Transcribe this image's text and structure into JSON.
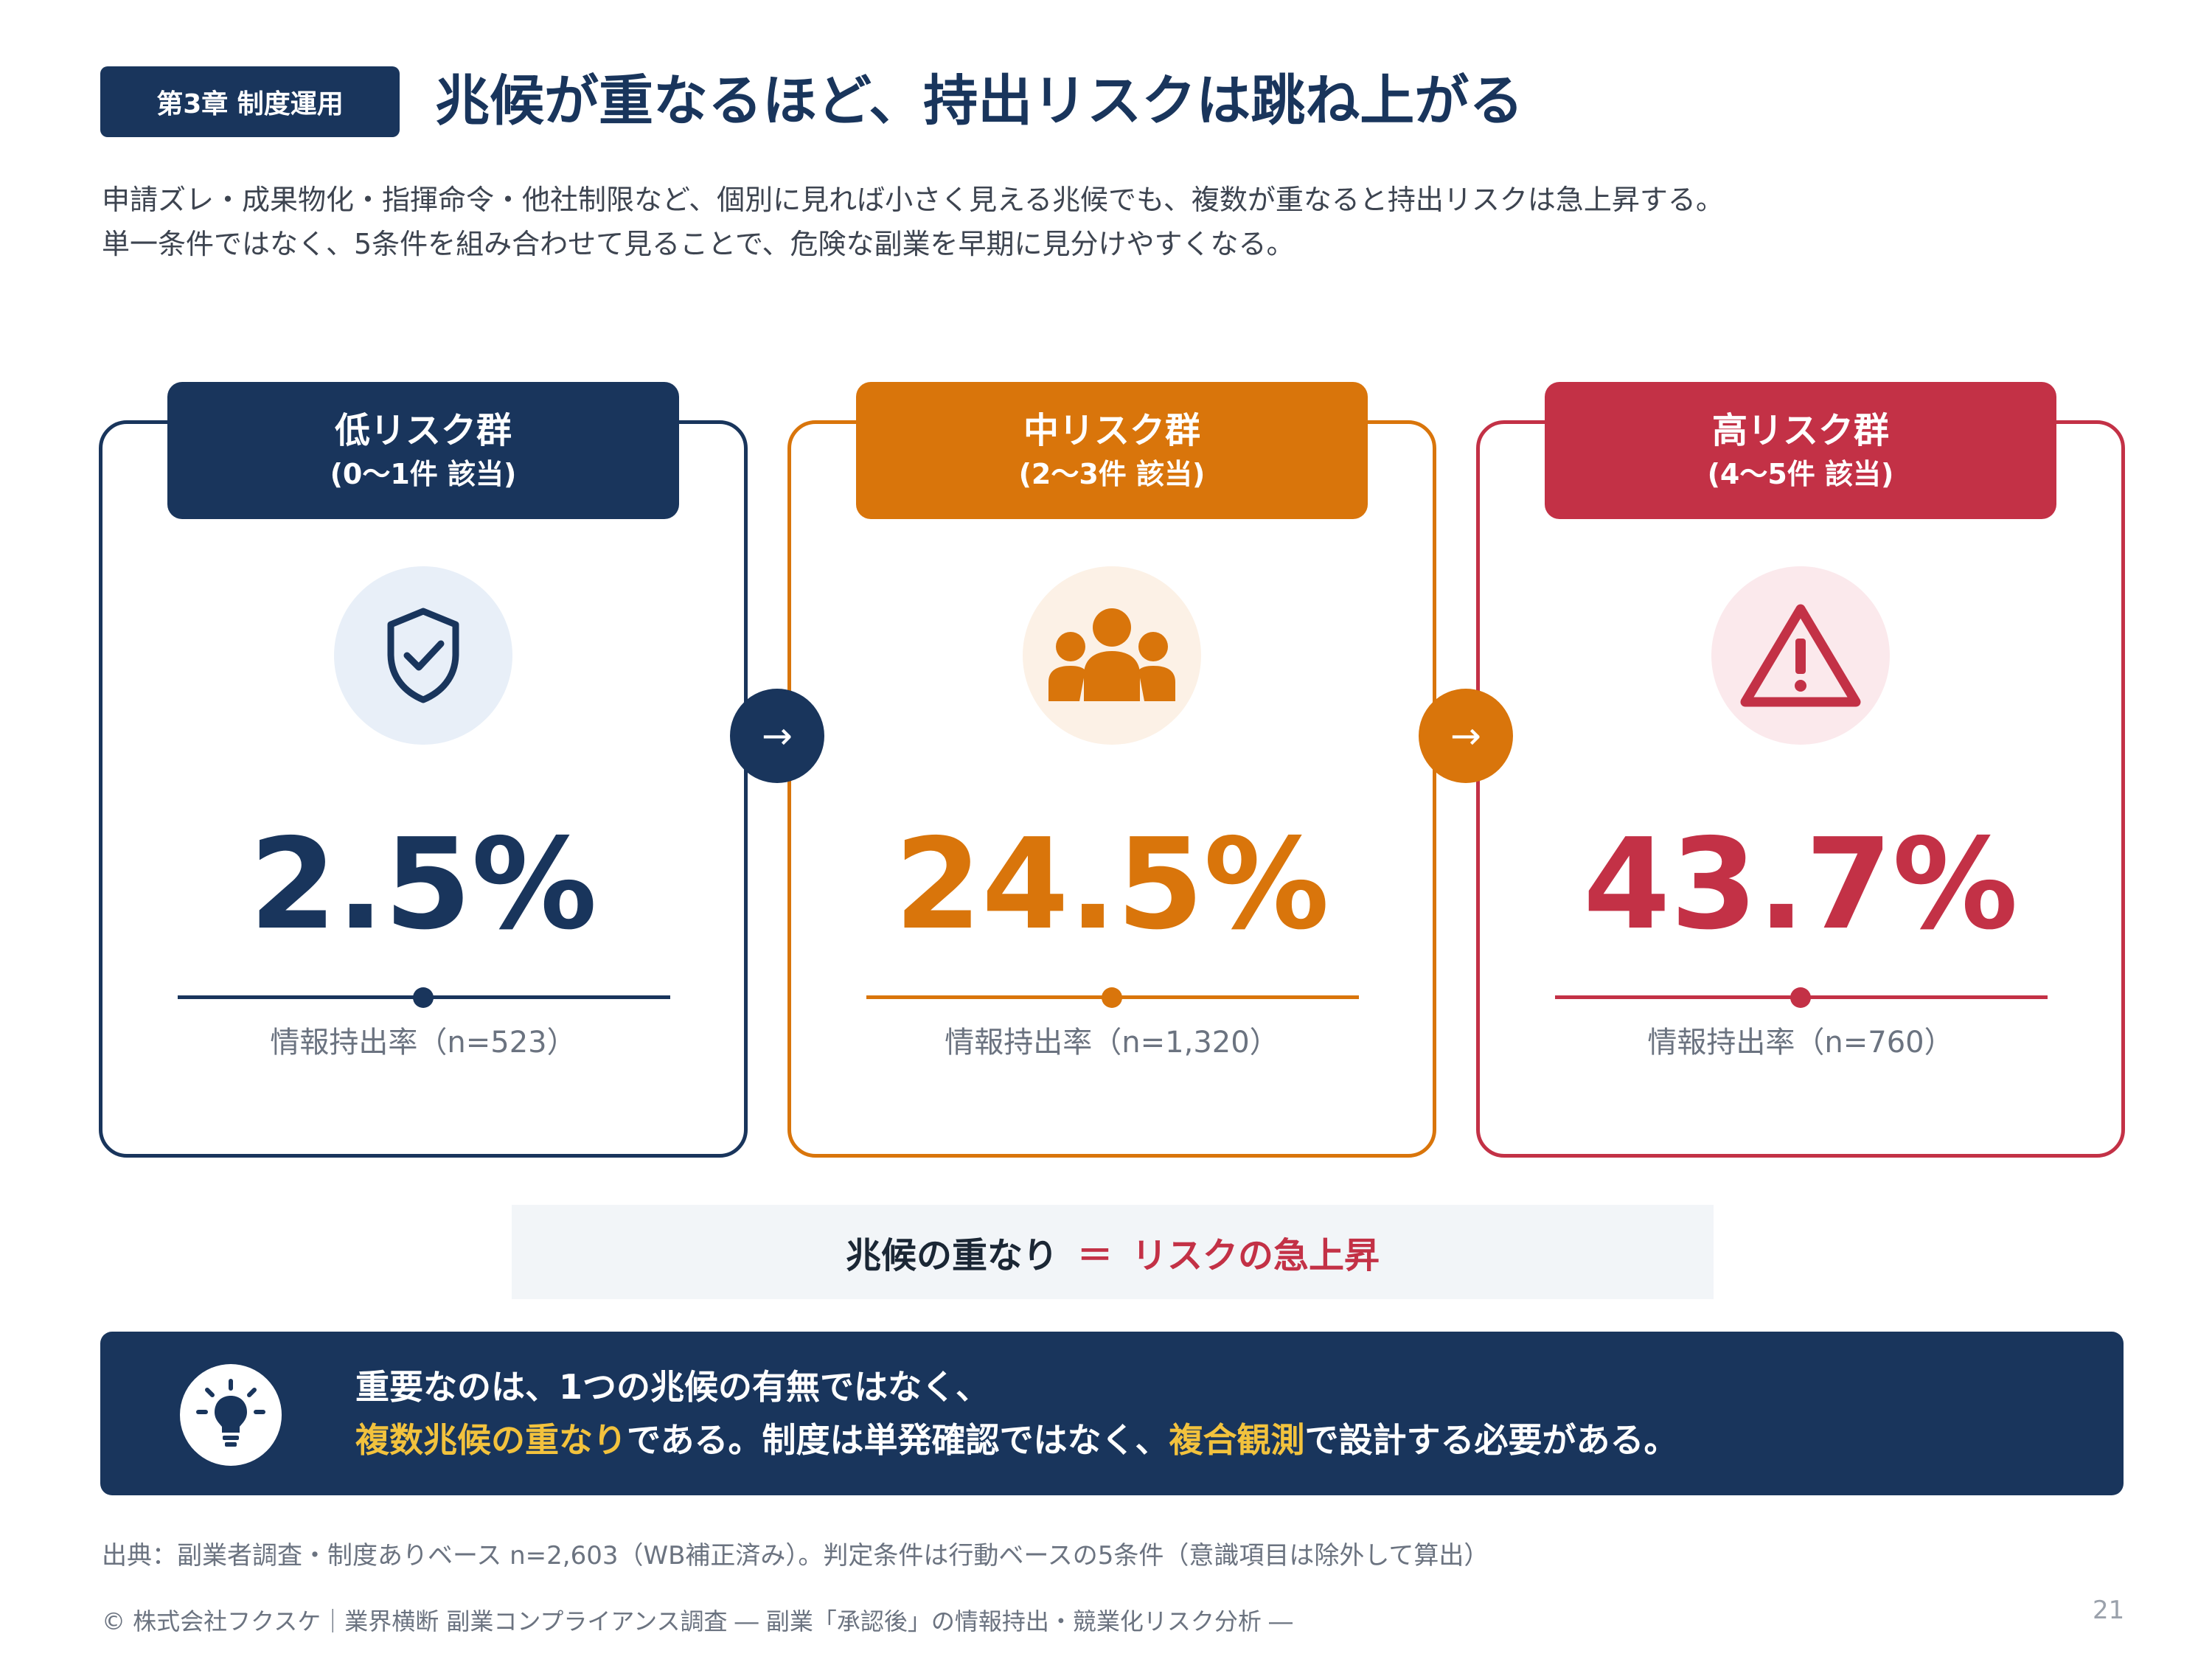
{
  "header": {
    "chapter_badge": "第3章 制度運用",
    "title": "兆候が重なるほど、持出リスクは跳ね上がる"
  },
  "lead": [
    "申請ズレ・成果物化・指揮命令・他社制限など、個別に見れば小さく見える兆候でも、複数が重なると持出リスクは急上昇する。",
    "単一条件ではなく、5条件を組み合わせて見ることで、危険な副業を早期に見分けやすくなる。"
  ],
  "cards": [
    {
      "title": "低リスク群",
      "subtitle": "(0〜1件 該当)",
      "value": "2.5%",
      "label": "情報持出率（n=523）",
      "icon": "shield-check-icon",
      "color": "#19355c",
      "tint": "#e8eff8"
    },
    {
      "title": "中リスク群",
      "subtitle": "(2〜3件 該当)",
      "value": "24.5%",
      "label": "情報持出率（n=1,320）",
      "icon": "people-group-icon",
      "color": "#d9750b",
      "tint": "#fcf1e6"
    },
    {
      "title": "高リスク群",
      "subtitle": "(4〜5件 該当)",
      "value": "43.7%",
      "label": "情報持出率（n=760）",
      "icon": "warning-triangle-icon",
      "color": "#c33146",
      "tint": "#fbe9ec"
    }
  ],
  "arrows": [
    "→",
    "→"
  ],
  "equation": {
    "left": "兆候の重なり",
    "equals": "＝",
    "right": "リスクの急上昇"
  },
  "insight": {
    "line1": "重要なのは、1つの兆候の有無ではなく、",
    "hl1": "複数兆候の重なり",
    "mid": "である。制度は単発確認ではなく、",
    "hl2": "複合観測",
    "end": "で設計する必要がある。",
    "icon": "lightbulb-icon"
  },
  "source": "出典：副業者調査・制度ありベース n=2,603（WB補正済み）。判定条件は行動ベースの5条件（意識項目は除外して算出）",
  "footer": "© 株式会社フクスケ｜業界横断 副業コンプライアンス調査 ― 副業「承認後」の情報持出・競業化リスク分析 ―",
  "page_number": "21"
}
